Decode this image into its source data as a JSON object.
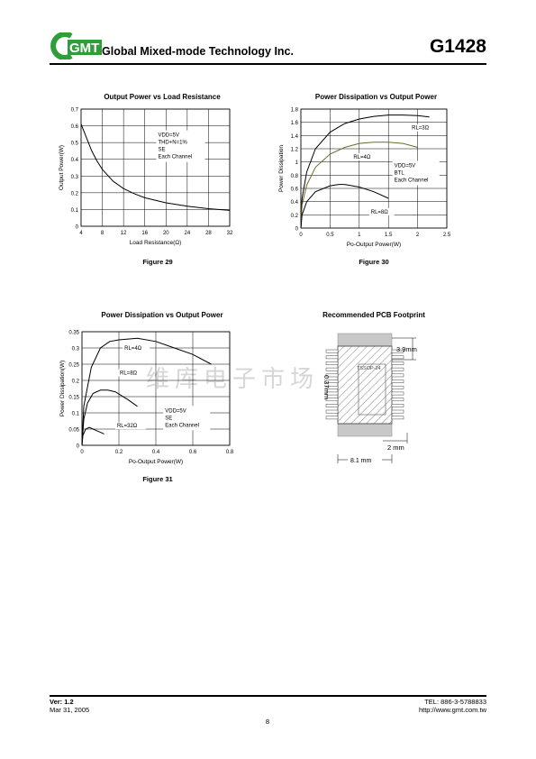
{
  "header": {
    "logo": "GMT",
    "company": "Global Mixed-mode Technology Inc.",
    "part_number": "G1428"
  },
  "watermark": "维库电子市场",
  "charts": {
    "fig29": {
      "title": "Output Power vs Load Resistance",
      "caption": "Figure 29",
      "xlabel": "Load Resistance(Ω)",
      "ylabel": "Output Power(W)",
      "legend": [
        "VDD=5V",
        "THD+N=1%",
        "SE",
        "Each Channel"
      ]
    },
    "fig30": {
      "title": "Power Dissipation vs Output Power",
      "caption": "Figure 30",
      "xlabel": "Po-Output Power(W)",
      "ylabel": "Power Dissipation",
      "legend": [
        "VDD=5V",
        "BTL",
        "Each Channel"
      ]
    },
    "fig31": {
      "title": "Power Dissipation vs Output Power",
      "caption": "Figure 31",
      "xlabel": "Po-Output Power(W)",
      "ylabel": "Power Dissipation(W)",
      "legend": [
        "VDD=5V",
        "SE",
        "Each Channel"
      ]
    },
    "pcb": {
      "title": "Recommended PCB Footprint",
      "dim_width": "3.9mm",
      "dim_pitch": "0.37mm",
      "dim_pad": "2 mm",
      "dim_total": "8.1 mm",
      "package": "TSSOP-24"
    }
  },
  "chart_data": [
    {
      "type": "line",
      "title": "Output Power vs Load Resistance",
      "xlabel": "Load Resistance(Ω)",
      "ylabel": "Output Power(W)",
      "xlim": [
        4,
        32
      ],
      "ylim": [
        0,
        0.7
      ],
      "xticks": [
        4,
        8,
        12,
        16,
        20,
        24,
        28,
        32
      ],
      "yticks": [
        0,
        0.1,
        0.2,
        0.3,
        0.4,
        0.5,
        0.6,
        0.7
      ],
      "grid": true,
      "series": [
        {
          "x": [
            4,
            5,
            6,
            7,
            8,
            10,
            12,
            14,
            16,
            20,
            24,
            28,
            32
          ],
          "y": [
            0.61,
            0.53,
            0.45,
            0.39,
            0.34,
            0.27,
            0.225,
            0.195,
            0.17,
            0.14,
            0.12,
            0.105,
            0.095
          ]
        }
      ],
      "annotations": [
        "VDD=5V",
        "THD+N=1%",
        "SE",
        "Each Channel"
      ]
    },
    {
      "type": "line",
      "title": "Power Dissipation vs Output Power",
      "xlabel": "Po-Output Power(W)",
      "ylabel": "Power Dissipation",
      "xlim": [
        0,
        2.5
      ],
      "ylim": [
        0,
        1.8
      ],
      "xticks": [
        0,
        0.5,
        1,
        1.5,
        2,
        2.5
      ],
      "yticks": [
        0,
        0.2,
        0.4,
        0.6,
        0.8,
        1,
        1.2,
        1.4,
        1.6,
        1.8
      ],
      "grid": true,
      "series": [
        {
          "name": "RL=3Ω",
          "x": [
            0,
            0.02,
            0.1,
            0.25,
            0.5,
            0.75,
            1.0,
            1.25,
            1.5,
            1.75,
            2.0,
            2.2
          ],
          "y": [
            0,
            0.45,
            0.85,
            1.2,
            1.45,
            1.58,
            1.65,
            1.69,
            1.71,
            1.71,
            1.7,
            1.68
          ]
        },
        {
          "name": "RL=4Ω",
          "x": [
            0,
            0.02,
            0.1,
            0.25,
            0.5,
            0.75,
            1.0,
            1.25,
            1.5,
            1.75,
            2.0
          ],
          "y": [
            0,
            0.35,
            0.65,
            0.92,
            1.12,
            1.22,
            1.28,
            1.3,
            1.3,
            1.28,
            1.22
          ]
        },
        {
          "name": "RL=8Ω",
          "x": [
            0,
            0.02,
            0.1,
            0.25,
            0.5,
            0.65,
            0.75,
            1.0,
            1.25,
            1.5
          ],
          "y": [
            0,
            0.2,
            0.4,
            0.55,
            0.64,
            0.66,
            0.66,
            0.62,
            0.55,
            0.45
          ]
        }
      ],
      "annotations": [
        "VDD=5V",
        "BTL",
        "Each Channel"
      ]
    },
    {
      "type": "line",
      "title": "Power Dissipation vs Output Power",
      "xlabel": "Po-Output Power(W)",
      "ylabel": "Power Dissipation(W)",
      "xlim": [
        0,
        0.8
      ],
      "ylim": [
        0,
        0.35
      ],
      "xticks": [
        0,
        0.2,
        0.4,
        0.6,
        0.8
      ],
      "yticks": [
        0,
        0.05,
        0.1,
        0.15,
        0.2,
        0.25,
        0.3,
        0.35
      ],
      "grid": true,
      "series": [
        {
          "name": "RL=4Ω",
          "x": [
            0,
            0.01,
            0.05,
            0.1,
            0.15,
            0.2,
            0.3,
            0.4,
            0.5,
            0.6,
            0.7
          ],
          "y": [
            0,
            0.12,
            0.24,
            0.3,
            0.32,
            0.325,
            0.33,
            0.32,
            0.3,
            0.28,
            0.25
          ]
        },
        {
          "name": "RL=8Ω",
          "x": [
            0,
            0.01,
            0.03,
            0.06,
            0.1,
            0.14,
            0.18,
            0.25,
            0.3
          ],
          "y": [
            0,
            0.08,
            0.13,
            0.16,
            0.17,
            0.17,
            0.165,
            0.14,
            0.12
          ]
        },
        {
          "name": "RL=32Ω",
          "x": [
            0,
            0.005,
            0.02,
            0.04,
            0.06,
            0.08,
            0.1,
            0.12
          ],
          "y": [
            0,
            0.03,
            0.05,
            0.055,
            0.05,
            0.045,
            0.04,
            0.035
          ]
        }
      ],
      "annotations": [
        "VDD=5V",
        "SE",
        "Each Channel"
      ]
    }
  ],
  "footer": {
    "version": "Ver: 1.2",
    "date": "Mar 31, 2005",
    "tel": "TEL: 886-3-5788833",
    "url": "http://www.gmt.com.tw",
    "page": "8"
  }
}
